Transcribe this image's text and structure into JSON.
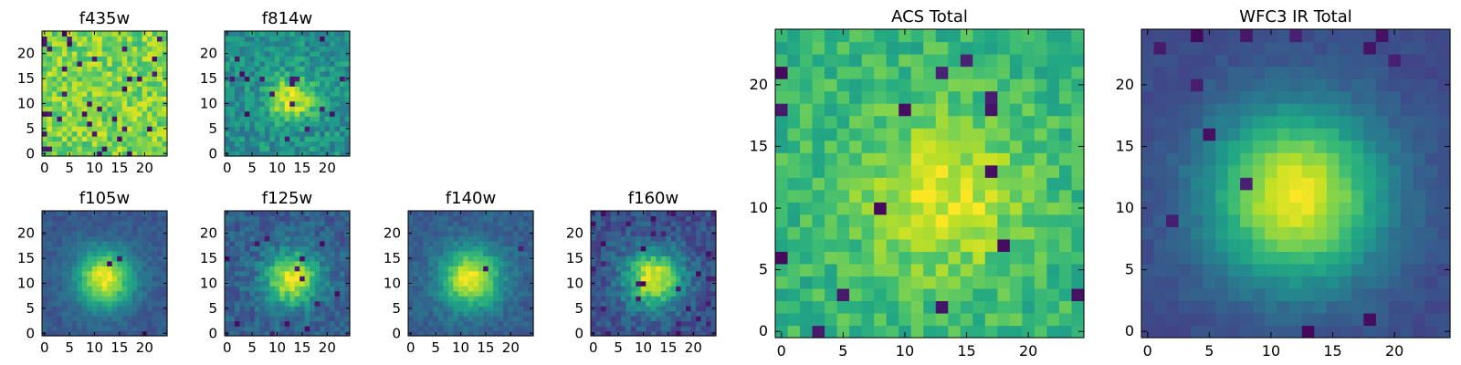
{
  "chart_data": [
    {
      "type": "heatmap",
      "title": "f435w",
      "xlim": [
        0,
        24
      ],
      "ylim": [
        0,
        24
      ],
      "xticks": [
        0,
        5,
        10,
        15,
        20
      ],
      "yticks": [
        0,
        5,
        10,
        15,
        20
      ],
      "xtick_labels": [
        "0",
        "5",
        "10",
        "15",
        "20"
      ],
      "ytick_labels": [
        "0",
        "5",
        "10",
        "15",
        "20"
      ],
      "colormap": "viridis",
      "pattern": "uniform noise, no central source",
      "peak_pixel": null,
      "grid": false
    },
    {
      "type": "heatmap",
      "title": "f814w",
      "xlim": [
        0,
        24
      ],
      "ylim": [
        0,
        24
      ],
      "xticks": [
        0,
        5,
        10,
        15,
        20
      ],
      "yticks": [
        0,
        5,
        10,
        15,
        20
      ],
      "xtick_labels": [
        "0",
        "5",
        "10",
        "15",
        "20"
      ],
      "ytick_labels": [
        "0",
        "5",
        "10",
        "15",
        "20"
      ],
      "colormap": "viridis",
      "pattern": "noisy with faint central source",
      "peak_pixel": [
        13,
        11
      ],
      "grid": false
    },
    {
      "type": "heatmap",
      "title": "f105w",
      "xlim": [
        0,
        24
      ],
      "ylim": [
        0,
        24
      ],
      "xticks": [
        0,
        5,
        10,
        15,
        20
      ],
      "yticks": [
        0,
        5,
        10,
        15,
        20
      ],
      "xtick_labels": [
        "0",
        "5",
        "10",
        "15",
        "20"
      ],
      "ytick_labels": [
        "0",
        "5",
        "10",
        "15",
        "20"
      ],
      "colormap": "viridis",
      "pattern": "central source",
      "peak_pixel": [
        12,
        11
      ],
      "grid": false
    },
    {
      "type": "heatmap",
      "title": "f125w",
      "xlim": [
        0,
        24
      ],
      "ylim": [
        0,
        24
      ],
      "xticks": [
        0,
        5,
        10,
        15,
        20
      ],
      "yticks": [
        0,
        5,
        10,
        15,
        20
      ],
      "xtick_labels": [
        "0",
        "5",
        "10",
        "15",
        "20"
      ],
      "ytick_labels": [
        "0",
        "5",
        "10",
        "15",
        "20"
      ],
      "colormap": "viridis",
      "pattern": "central source",
      "peak_pixel": [
        13,
        11
      ],
      "grid": false
    },
    {
      "type": "heatmap",
      "title": "f140w",
      "xlim": [
        0,
        24
      ],
      "ylim": [
        0,
        24
      ],
      "xticks": [
        0,
        5,
        10,
        15,
        20
      ],
      "yticks": [
        0,
        5,
        10,
        15,
        20
      ],
      "xtick_labels": [
        "0",
        "5",
        "10",
        "15",
        "20"
      ],
      "ytick_labels": [
        "0",
        "5",
        "10",
        "15",
        "20"
      ],
      "colormap": "viridis",
      "pattern": "central source",
      "peak_pixel": [
        12,
        11
      ],
      "grid": false
    },
    {
      "type": "heatmap",
      "title": "f160w",
      "xlim": [
        0,
        24
      ],
      "ylim": [
        0,
        24
      ],
      "xticks": [
        0,
        5,
        10,
        15,
        20
      ],
      "yticks": [
        0,
        5,
        10,
        15,
        20
      ],
      "xtick_labels": [
        "0",
        "5",
        "10",
        "15",
        "20"
      ],
      "ytick_labels": [
        "0",
        "5",
        "10",
        "15",
        "20"
      ],
      "colormap": "viridis",
      "pattern": "central source",
      "peak_pixel": [
        12,
        11
      ],
      "grid": false
    },
    {
      "type": "heatmap",
      "title": "ACS Total",
      "xlim": [
        0,
        24
      ],
      "ylim": [
        0,
        24
      ],
      "xticks": [
        0,
        5,
        10,
        15,
        20
      ],
      "yticks": [
        0,
        5,
        10,
        15,
        20
      ],
      "xtick_labels": [
        "0",
        "5",
        "10",
        "15",
        "20"
      ],
      "ytick_labels": [
        "0",
        "5",
        "10",
        "15",
        "20"
      ],
      "colormap": "viridis",
      "pattern": "noisy with broad central source",
      "peak_pixel": [
        13,
        11
      ],
      "grid": false
    },
    {
      "type": "heatmap",
      "title": "WFC3 IR Total",
      "xlim": [
        0,
        24
      ],
      "ylim": [
        0,
        24
      ],
      "xticks": [
        0,
        5,
        10,
        15,
        20
      ],
      "yticks": [
        0,
        5,
        10,
        15,
        20
      ],
      "xtick_labels": [
        "0",
        "5",
        "10",
        "15",
        "20"
      ],
      "ytick_labels": [
        "0",
        "5",
        "10",
        "15",
        "20"
      ],
      "colormap": "viridis",
      "pattern": "smooth central source",
      "peak_pixel": [
        12,
        11
      ],
      "grid": false
    }
  ]
}
